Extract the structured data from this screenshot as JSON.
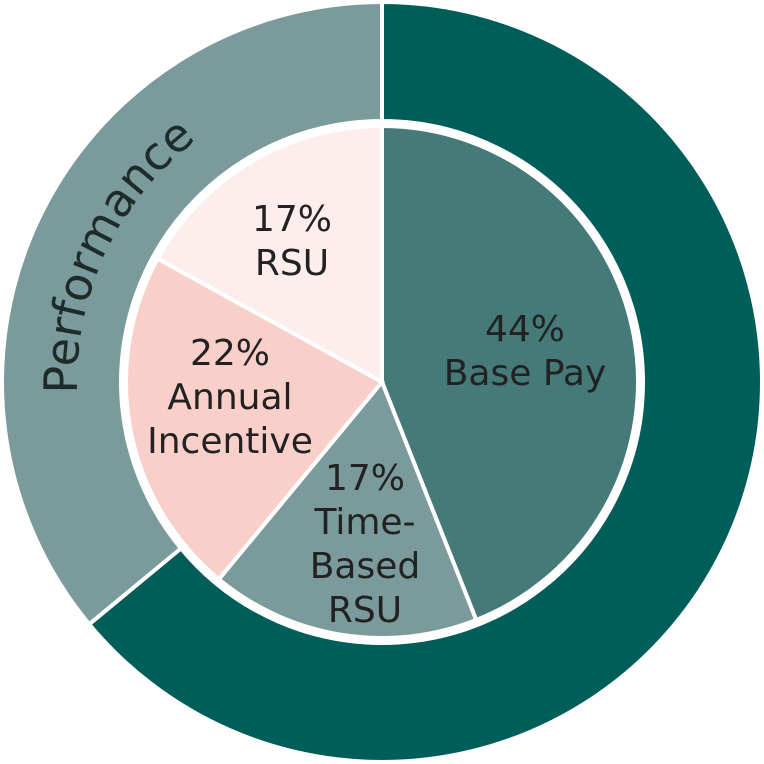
{
  "chart_data": {
    "type": "pie",
    "rings": [
      {
        "categories": [
          null,
          "Performance"
        ],
        "values": [
          64,
          36
        ],
        "colors": [
          "#005e5a",
          "#7a9a9b"
        ]
      },
      {
        "categories": [
          "Base Pay",
          "Time-Based RSU",
          "Annual Incentive",
          "RSU"
        ],
        "values": [
          44,
          17,
          22,
          17
        ],
        "value_labels": [
          "44%",
          "17%",
          "22%",
          "17%"
        ],
        "colors": [
          "#457a79",
          "#7a9a9b",
          "#f9cfc9",
          "#fdeeed"
        ]
      }
    ]
  }
}
